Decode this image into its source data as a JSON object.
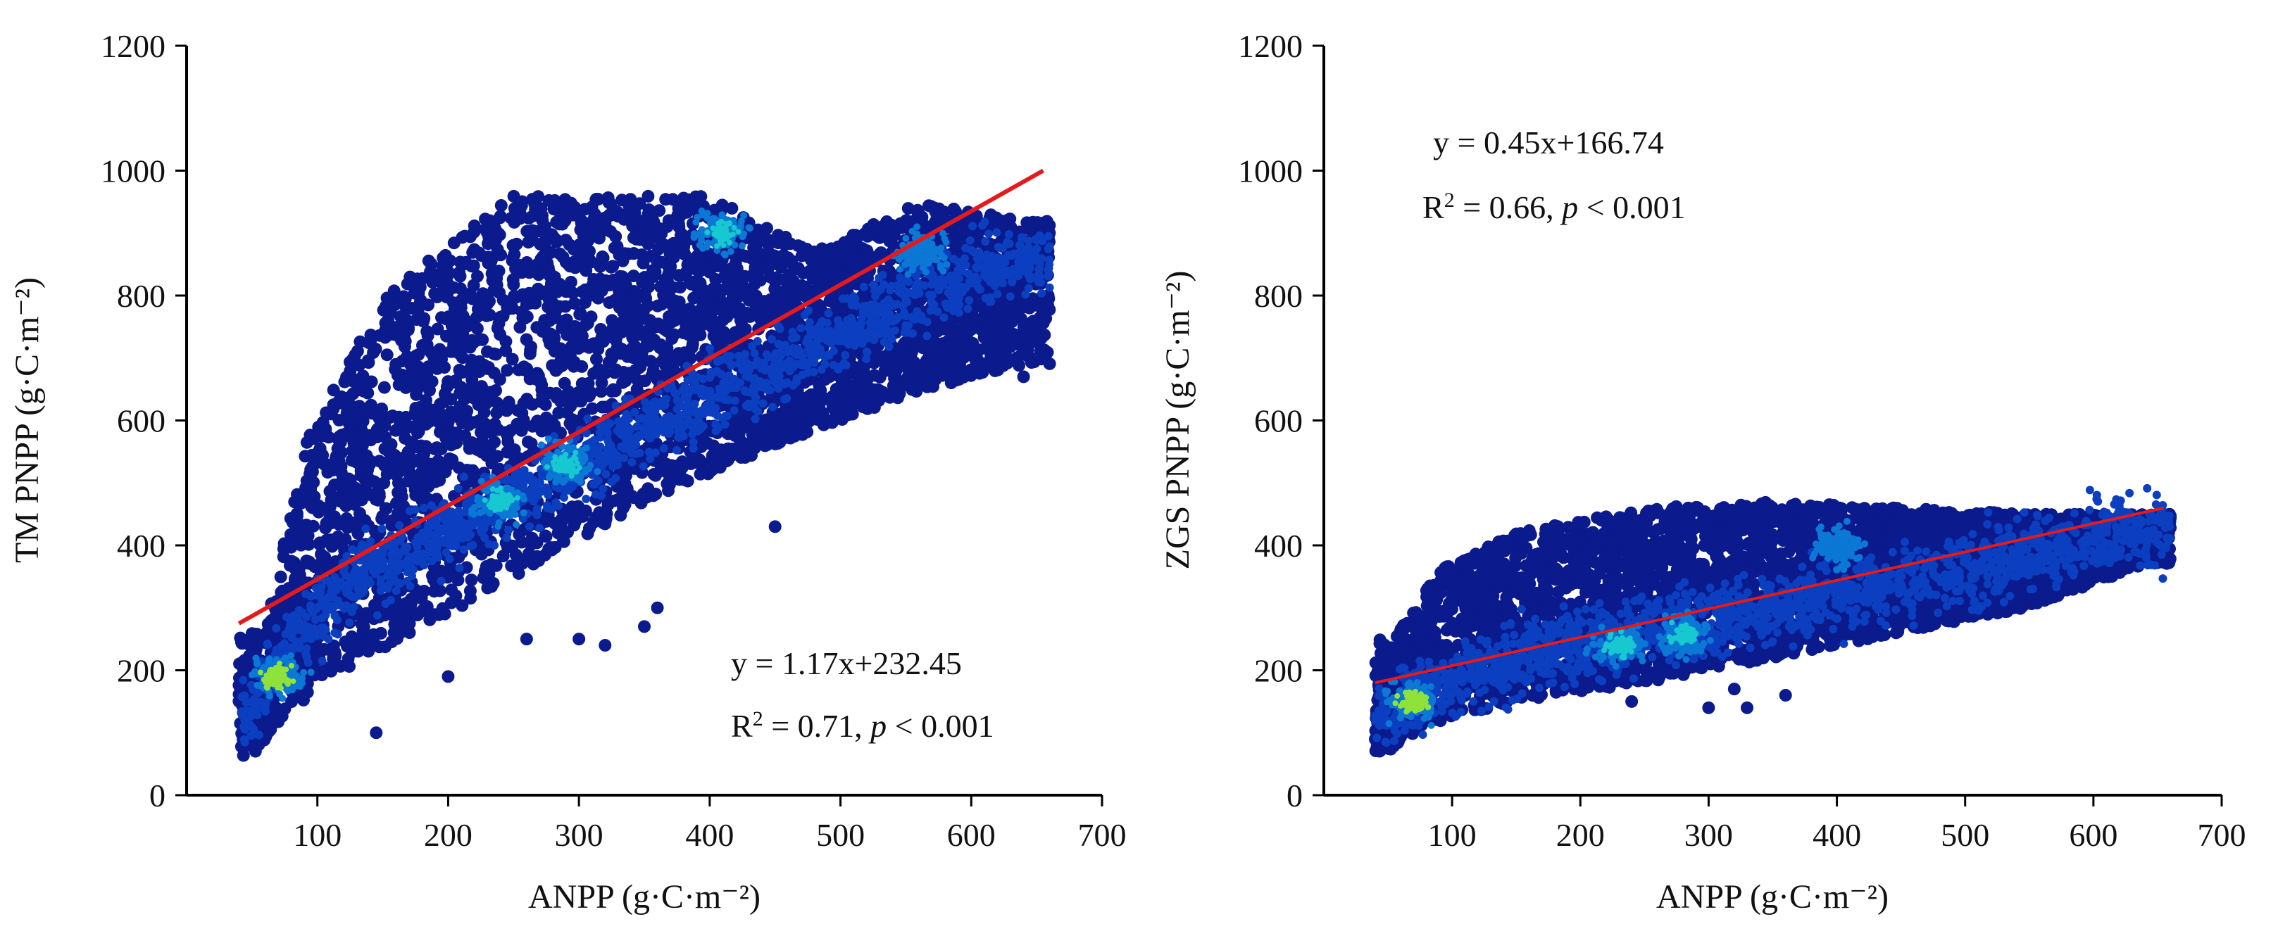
{
  "colors": {
    "point_low": "#0b1a8c",
    "point_mid": "#0a78d4",
    "point_high": "#18c8d0",
    "point_peak": "#8fe23a",
    "fit_line": "#e41a1c",
    "axis": "#000000"
  },
  "chart_data": [
    {
      "type": "scatter",
      "title": "",
      "xlabel": "ANPP (g·C·m⁻²)",
      "ylabel": "TM PNPP (g·C·m⁻²)",
      "xlim": [
        0,
        700
      ],
      "ylim": [
        0,
        1200
      ],
      "x_ticks": [
        100,
        200,
        300,
        400,
        500,
        600,
        700
      ],
      "y_ticks": [
        0,
        200,
        400,
        600,
        800,
        1000,
        1200
      ],
      "density_colormap": "jet",
      "fit": {
        "slope": 1.17,
        "intercept": 232.45,
        "x_range": [
          40,
          655
        ],
        "x_end_value": 1000
      },
      "equation_text": "y = 1.17x+232.45",
      "stats_text": {
        "r2_prefix": "R",
        "r2_sup": "2",
        "r2_value": " = 0.71, ",
        "p_symbol": "p",
        "p_value": " < 0.001"
      },
      "point_cloud": {
        "x_range": [
          40,
          660
        ],
        "spine": [
          [
            45,
            120
          ],
          [
            70,
            220
          ],
          [
            120,
            330
          ],
          [
            200,
            430
          ],
          [
            300,
            530
          ],
          [
            400,
            640
          ],
          [
            500,
            740
          ],
          [
            600,
            840
          ],
          [
            655,
            860
          ]
        ],
        "upper_envelope": [
          [
            60,
            260
          ],
          [
            90,
            560
          ],
          [
            150,
            800
          ],
          [
            250,
            960
          ],
          [
            400,
            960
          ],
          [
            480,
            870
          ],
          [
            560,
            950
          ],
          [
            640,
            920
          ]
        ],
        "lower_envelope": [
          [
            50,
            60
          ],
          [
            80,
            140
          ],
          [
            150,
            230
          ],
          [
            250,
            350
          ],
          [
            350,
            470
          ],
          [
            450,
            560
          ],
          [
            550,
            640
          ],
          [
            640,
            690
          ]
        ],
        "hotspots": [
          {
            "x": 70,
            "y": 190,
            "level": "peak"
          },
          {
            "x": 240,
            "y": 470,
            "level": "high"
          },
          {
            "x": 290,
            "y": 530,
            "level": "high"
          },
          {
            "x": 410,
            "y": 900,
            "level": "high"
          },
          {
            "x": 560,
            "y": 870,
            "level": "mid"
          }
        ],
        "outliers": [
          [
            145,
            100
          ],
          [
            200,
            190
          ],
          [
            260,
            250
          ],
          [
            300,
            250
          ],
          [
            320,
            240
          ],
          [
            350,
            270
          ],
          [
            360,
            300
          ],
          [
            450,
            430
          ],
          [
            640,
            670
          ]
        ]
      }
    },
    {
      "type": "scatter",
      "title": "",
      "xlabel": "ANPP (g·C·m⁻²)",
      "ylabel": "ZGS PNPP (g·C·m⁻²)",
      "xlim": [
        0,
        700
      ],
      "ylim": [
        0,
        1200
      ],
      "x_ticks": [
        100,
        200,
        300,
        400,
        500,
        600,
        700
      ],
      "y_ticks": [
        0,
        200,
        400,
        600,
        800,
        1000,
        1200
      ],
      "density_colormap": "jet",
      "fit": {
        "slope": 0.45,
        "intercept": 166.74,
        "x_range": [
          40,
          655
        ],
        "x_end_value": 460
      },
      "equation_text": "y = 0.45x+166.74",
      "stats_text": {
        "r2_prefix": "R",
        "r2_sup": "2",
        "r2_value": " = 0.66, ",
        "p_symbol": "p",
        "p_value": " < 0.001"
      },
      "point_cloud": {
        "x_range": [
          40,
          660
        ],
        "spine": [
          [
            45,
            120
          ],
          [
            70,
            160
          ],
          [
            120,
            200
          ],
          [
            200,
            240
          ],
          [
            300,
            280
          ],
          [
            400,
            320
          ],
          [
            500,
            360
          ],
          [
            600,
            410
          ],
          [
            655,
            430
          ]
        ],
        "upper_envelope": [
          [
            55,
            250
          ],
          [
            90,
            360
          ],
          [
            150,
            420
          ],
          [
            250,
            460
          ],
          [
            350,
            470
          ],
          [
            450,
            460
          ],
          [
            550,
            450
          ],
          [
            640,
            450
          ]
        ],
        "lower_envelope": [
          [
            50,
            70
          ],
          [
            80,
            110
          ],
          [
            150,
            150
          ],
          [
            250,
            180
          ],
          [
            350,
            220
          ],
          [
            450,
            260
          ],
          [
            550,
            300
          ],
          [
            640,
            370
          ]
        ],
        "hotspots": [
          {
            "x": 70,
            "y": 150,
            "level": "peak"
          },
          {
            "x": 230,
            "y": 240,
            "level": "high"
          },
          {
            "x": 280,
            "y": 255,
            "level": "high"
          },
          {
            "x": 400,
            "y": 400,
            "level": "mid"
          }
        ],
        "outliers": [
          [
            240,
            150
          ],
          [
            300,
            140
          ],
          [
            320,
            170
          ],
          [
            330,
            140
          ],
          [
            360,
            160
          ]
        ]
      }
    }
  ]
}
